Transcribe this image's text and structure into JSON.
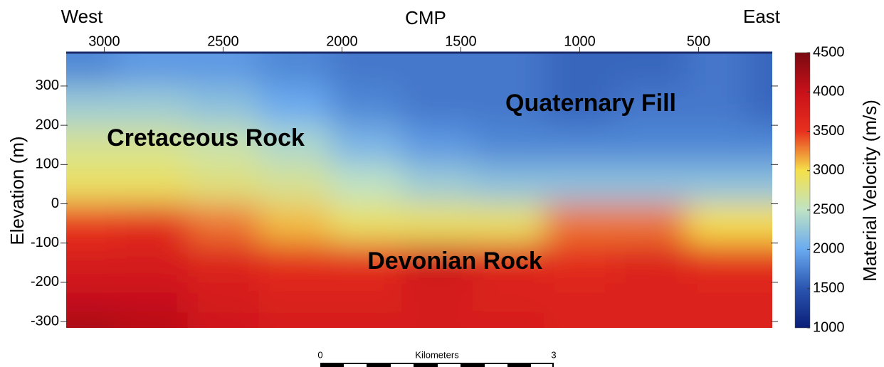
{
  "chart_data": {
    "type": "contour",
    "top_left_label": "West",
    "x_label": "CMP",
    "top_right_label": "East",
    "y_label": "Elevation (m)",
    "colorbar_label": "Material Velocity (m/s)",
    "annotations": [
      "Quaternary Fill",
      "Cretaceous Rock",
      "Devonian Rock"
    ],
    "x": [
      3100,
      2800,
      2500,
      2200,
      1900,
      1600,
      1300,
      1000,
      700,
      400,
      200
    ],
    "y": [
      350,
      250,
      150,
      50,
      -50,
      -150,
      -250,
      -300
    ],
    "z": [
      [
        1800,
        1900,
        1900,
        1800,
        1700,
        1700,
        1700,
        1600,
        1600,
        1700,
        1600
      ],
      [
        2300,
        2300,
        2200,
        2000,
        1800,
        1700,
        1700,
        1600,
        1700,
        1700,
        1600
      ],
      [
        2700,
        2700,
        2600,
        2400,
        2100,
        1900,
        1800,
        1800,
        1800,
        1800,
        1800
      ],
      [
        2900,
        2900,
        2800,
        2700,
        2500,
        2300,
        2200,
        2200,
        2200,
        2200,
        2200
      ],
      [
        3500,
        3600,
        3300,
        3100,
        2900,
        2900,
        2900,
        3300,
        3300,
        3000,
        3000
      ],
      [
        3800,
        3800,
        3700,
        3600,
        3600,
        3900,
        3700,
        3600,
        3700,
        3600,
        3600
      ],
      [
        4000,
        4000,
        3800,
        3700,
        3700,
        3800,
        3700,
        3700,
        3700,
        3700,
        3700
      ],
      [
        4200,
        4100,
        3900,
        3800,
        3800,
        3800,
        3800,
        3700,
        3700,
        3700,
        3700
      ]
    ],
    "xlim": [
      3160,
      190
    ],
    "xticks": [
      3000,
      2500,
      2000,
      1500,
      1000,
      500
    ],
    "ylim": [
      -316,
      385
    ],
    "yticks": [
      -300,
      -200,
      -100,
      0,
      100,
      200,
      300
    ],
    "clim": [
      1000,
      4500
    ],
    "cticks": [
      1000,
      1500,
      2000,
      2500,
      3000,
      3500,
      4000,
      4500
    ],
    "colors": [
      "#0b1f78",
      "#2a55b0",
      "#6aaaf0",
      "#bfe3c4",
      "#f5e04a",
      "#e8301e",
      "#c8101a",
      "#7a0a10"
    ],
    "scalebar": {
      "label": "Kilometers",
      "ticks": [
        0,
        3
      ]
    }
  }
}
